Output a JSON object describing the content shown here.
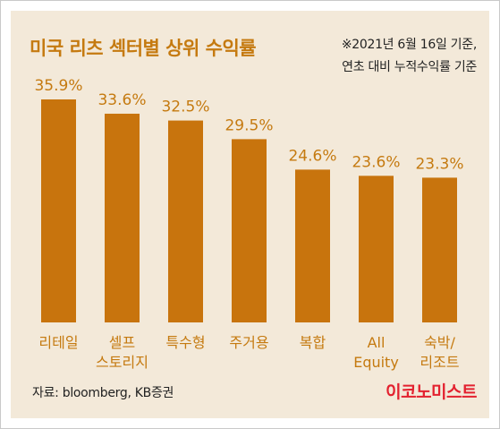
{
  "header": {
    "title": "미국 리츠 섹터별 상위 수익률",
    "note_line1": "※2021년 6월 16일 기준,",
    "note_line2": "연초 대비 누적수익률 기준"
  },
  "footer": {
    "source": "자료: bloomberg, KB증권",
    "brand": "이코노미스트"
  },
  "colors": {
    "bar": "#c8740d",
    "accent_text": "#c57a10",
    "panel_background": "#f3e9d9",
    "brand": "#e3212f"
  },
  "chart_data": {
    "type": "bar",
    "title": "미국 리츠 섹터별 상위 수익률",
    "categories": [
      [
        "리테일"
      ],
      [
        "셀프",
        "스토리지"
      ],
      [
        "특수형"
      ],
      [
        "주거용"
      ],
      [
        "복합"
      ],
      [
        "All",
        "Equity"
      ],
      [
        "숙박/",
        "리조트"
      ]
    ],
    "values": [
      35.9,
      33.6,
      32.5,
      29.5,
      24.6,
      23.6,
      23.3
    ],
    "value_labels": [
      "35.9%",
      "33.6%",
      "32.5%",
      "29.5%",
      "24.6%",
      "23.6%",
      "23.3%"
    ],
    "unit": "%",
    "ylim": [
      0,
      35.9
    ],
    "grid": false,
    "legend": "none"
  }
}
